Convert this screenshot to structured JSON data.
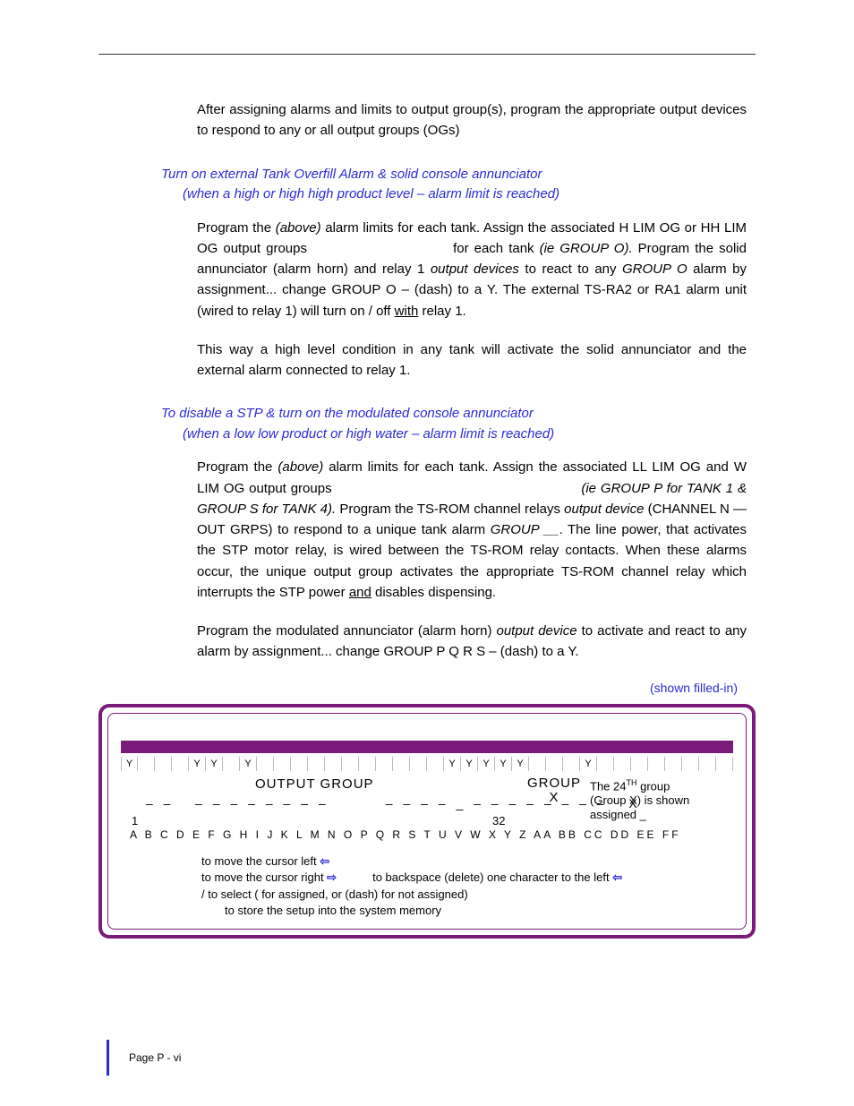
{
  "colors": {
    "accent_blue": "#2b2bd6",
    "panel_purple": "#7a1b7a",
    "text_black": "#000000",
    "background": "#ffffff",
    "cell_border": "#bbbbbb"
  },
  "intro_para": "After assigning alarms and limits to output group(s), program the appropriate output devices to respond to any or all output groups (OGs)",
  "section1": {
    "heading_line1": "Turn on external Tank Overfill Alarm  & solid console annunciator",
    "heading_line2": "(when a high or high high product level – alarm limit is reached)",
    "para1_a": "Program the ",
    "para1_b": "(above)",
    "para1_c": " alarm limits for each tank. Assign the associated H LIM OG or HH LIM OG output groups",
    "para1_d": "for each tank ",
    "para1_e": "(ie GROUP O).",
    "para1_f": " Program the solid annunciator (alarm horn) and relay 1 ",
    "para1_g": "output devices",
    "para1_h": " to react to any ",
    "para1_i": "GROUP O",
    "para1_j": " alarm by assignment... change GROUP O – (dash) to a Y.  The external TS-RA2 or RA1 alarm unit (wired to relay 1) will turn on / off ",
    "para1_k": "with",
    "para1_l": " relay 1.",
    "para2": "This way a high level condition in any tank will activate the solid annunciator and the external alarm connected to relay 1."
  },
  "section2": {
    "heading_line1": "To disable a STP & turn on the modulated console annunciator",
    "heading_line2": "(when a low low product or high water – alarm limit is reached)",
    "para1_a": "Program the ",
    "para1_b": "(above)",
    "para1_c": " alarm limits for each tank. Assign the associated LL LIM OG and W LIM OG output groups",
    "para1_d": "(ie GROUP P for TANK 1 & GROUP S for TANK 4).",
    "para1_e": " Program the TS-ROM channel relays ",
    "para1_f": "output device",
    "para1_g": " (CHANNEL N — OUT GRPS) to respond to a unique tank alarm ",
    "para1_h": "GROUP __",
    "para1_i": ". The line power, that activates the STP motor relay, is wired between the TS-ROM relay contacts. When these alarms occur, the unique output group activates the appropriate TS-ROM channel relay which interrupts the STP power ",
    "para1_j": "and",
    "para1_k": " disables dispensing.",
    "para2_a": "Program the modulated annunciator (alarm horn) ",
    "para2_b": "output device",
    "para2_c": " to activate and react to any alarm by assignment... change GROUP P  Q  R  S  – (dash) to a Y."
  },
  "caption": "(shown filled-in)",
  "panel": {
    "y_cells": [
      "Y",
      "",
      "",
      "",
      "Y",
      "Y",
      "",
      "Y",
      "",
      "",
      "",
      "",
      "",
      "",
      "",
      "",
      "",
      "",
      "",
      "Y",
      "Y",
      "Y",
      "Y",
      "Y",
      "",
      "",
      "",
      "Y",
      "",
      "",
      "",
      "",
      "",
      "",
      "",
      ""
    ],
    "output_group_label": "OUTPUT GROUP",
    "group_label_1": "GROUP",
    "group_label_2": "X",
    "note_line1_a": "The 24",
    "note_line1_sup": "TH",
    "note_line1_b": " group",
    "note_line2": "(Group X) is shown",
    "note_line3": "assigned _",
    "dash_row": "– –   – – – – – – – –        – – – – _ – – – – – – – –   X",
    "range_start": "1",
    "range_end": "32",
    "alpha_row": "A B C D E F G H I J K L M N O P Q R S T U V W X Y Z AA BB CC DD EE FF",
    "help1": "to move the cursor left  ",
    "help2a": "to move the cursor right  ",
    "help2b": "to backspace (delete) one character to the left  ",
    "help3": "/               to select (    for       assigned, or      (dash) for       not assigned)",
    "help4": "to store the setup into the system memory"
  },
  "footer": "Page   P - vi"
}
